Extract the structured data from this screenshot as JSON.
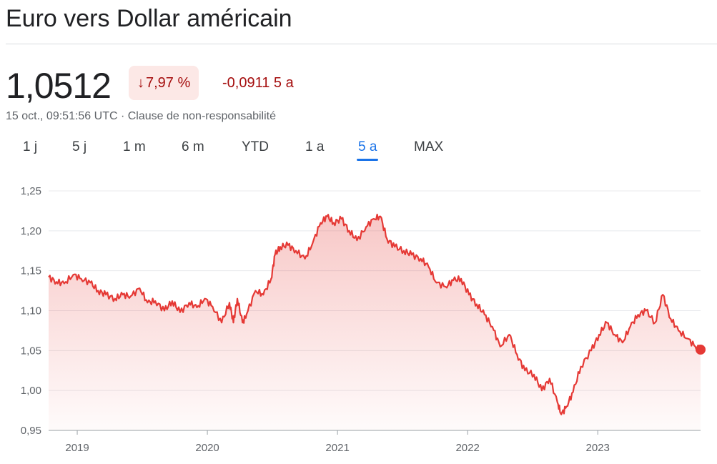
{
  "header": {
    "title": "Euro vers Dollar américain",
    "price": "1,0512",
    "change_arrow": "↓",
    "change_pct": "7,97 %",
    "change_abs": "-0,0911 5 a",
    "timestamp": "15 oct., 09:51:56 UTC · Clause de non-responsabilité"
  },
  "tabs": [
    {
      "label": "1 j"
    },
    {
      "label": "5 j"
    },
    {
      "label": "1 m"
    },
    {
      "label": "6 m"
    },
    {
      "label": "YTD"
    },
    {
      "label": "1 a"
    },
    {
      "label": "5 a",
      "active": true
    },
    {
      "label": "MAX"
    }
  ],
  "colors": {
    "line": "#e53935",
    "badge_bg": "#fce8e6",
    "negative_text": "#a50e0e",
    "accent": "#1a73e8"
  },
  "chart_data": {
    "type": "area",
    "ylim": [
      0.95,
      1.25
    ],
    "yticks": [
      1.25,
      1.2,
      1.15,
      1.1,
      1.05,
      1.0,
      0.95
    ],
    "ytick_labels": [
      "1,25",
      "1,20",
      "1,15",
      "1,10",
      "1,05",
      "1,00",
      "0,95"
    ],
    "xlim": [
      2018.78,
      2023.79
    ],
    "xticks": [
      2019,
      2020,
      2021,
      2022,
      2023
    ],
    "xtick_labels": [
      "2019",
      "2020",
      "2021",
      "2022",
      "2023"
    ],
    "grid": true,
    "series": [
      {
        "x": [
          2018.78,
          2018.84,
          2018.9,
          2018.97,
          2019.03,
          2019.1,
          2019.16,
          2019.22,
          2019.29,
          2019.35,
          2019.41,
          2019.48,
          2019.54,
          2019.6,
          2019.67,
          2019.73,
          2019.79,
          2019.86,
          2019.92,
          2019.98,
          2020.04,
          2020.11,
          2020.17,
          2020.2,
          2020.23,
          2020.27,
          2020.3,
          2020.37,
          2020.43,
          2020.49,
          2020.52,
          2020.56,
          2020.62,
          2020.68,
          2020.75,
          2020.81,
          2020.87,
          2020.92,
          2020.97,
          2021.03,
          2021.09,
          2021.15,
          2021.22,
          2021.28,
          2021.33,
          2021.38,
          2021.44,
          2021.51,
          2021.57,
          2021.64,
          2021.7,
          2021.76,
          2021.83,
          2021.89,
          2021.95,
          2022.01,
          2022.07,
          2022.13,
          2022.19,
          2022.25,
          2022.32,
          2022.38,
          2022.44,
          2022.51,
          2022.57,
          2022.63,
          2022.69,
          2022.72,
          2022.76,
          2022.81,
          2022.87,
          2022.95,
          2023.01,
          2023.07,
          2023.13,
          2023.19,
          2023.25,
          2023.31,
          2023.37,
          2023.44,
          2023.5,
          2023.56,
          2023.62,
          2023.69,
          2023.75,
          2023.79
        ],
        "y": [
          1.142,
          1.136,
          1.134,
          1.145,
          1.14,
          1.135,
          1.125,
          1.12,
          1.115,
          1.12,
          1.118,
          1.128,
          1.11,
          1.112,
          1.1,
          1.112,
          1.098,
          1.11,
          1.104,
          1.115,
          1.105,
          1.085,
          1.11,
          1.085,
          1.115,
          1.085,
          1.095,
          1.125,
          1.12,
          1.14,
          1.17,
          1.18,
          1.182,
          1.175,
          1.165,
          1.185,
          1.21,
          1.218,
          1.21,
          1.215,
          1.2,
          1.188,
          1.205,
          1.215,
          1.218,
          1.19,
          1.18,
          1.175,
          1.17,
          1.165,
          1.155,
          1.135,
          1.13,
          1.138,
          1.14,
          1.12,
          1.108,
          1.095,
          1.08,
          1.055,
          1.07,
          1.045,
          1.025,
          1.02,
          1.0,
          1.015,
          0.985,
          0.97,
          0.98,
          0.998,
          1.03,
          1.05,
          1.07,
          1.085,
          1.07,
          1.06,
          1.08,
          1.095,
          1.1,
          1.085,
          1.12,
          1.09,
          1.075,
          1.065,
          1.055,
          1.0512
        ]
      }
    ]
  }
}
